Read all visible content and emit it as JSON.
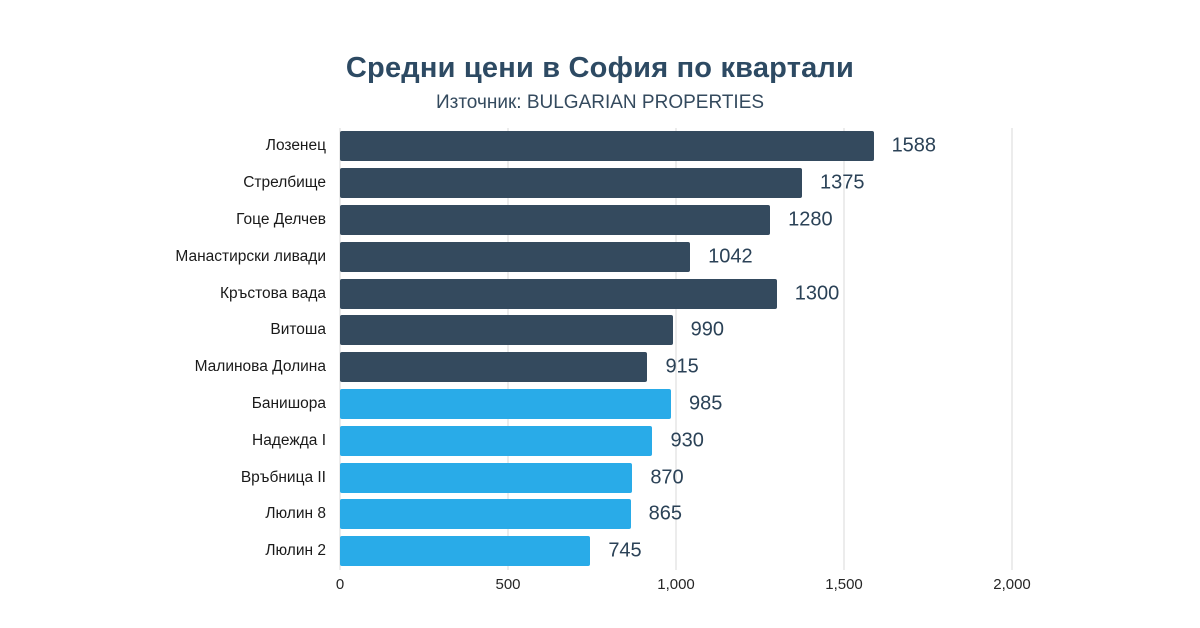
{
  "header": {
    "title": "Средни цени в София по квартали",
    "subtitle": "Източник: BULGARIAN PROPERTIES"
  },
  "colors": {
    "dark_bar": "#344a5e",
    "blue_bar": "#29abe8",
    "grid": "#d9d9d9",
    "title_text": "#2d4a63",
    "value_text": "#2b4257"
  },
  "chart_data": {
    "type": "bar",
    "orientation": "horizontal",
    "title": "Средни цени в София по квартали",
    "subtitle": "Източник: BULGARIAN PROPERTIES",
    "categories": [
      "Лозенец",
      "Стрелбище",
      "Гоце Делчев",
      "Манастирски ливади",
      "Кръстова вада",
      "Витоша",
      "Малинова Долина",
      "Банишора",
      "Надежда I",
      "Връбница II",
      "Люлин 8",
      "Люлин 2"
    ],
    "values": [
      1588,
      1375,
      1280,
      1042,
      1300,
      990,
      915,
      985,
      930,
      870,
      865,
      745
    ],
    "bar_colors": [
      "#344a5e",
      "#344a5e",
      "#344a5e",
      "#344a5e",
      "#344a5e",
      "#344a5e",
      "#344a5e",
      "#29abe8",
      "#29abe8",
      "#29abe8",
      "#29abe8",
      "#29abe8"
    ],
    "xlim": [
      0,
      2000
    ],
    "x_ticks": [
      {
        "value": 0,
        "label": "0"
      },
      {
        "value": 500,
        "label": "500"
      },
      {
        "value": 1000,
        "label": "1,000"
      },
      {
        "value": 1500,
        "label": "1,500"
      },
      {
        "value": 2000,
        "label": "2,000"
      }
    ],
    "grid": true,
    "legend": false,
    "value_labels_shown": true
  }
}
